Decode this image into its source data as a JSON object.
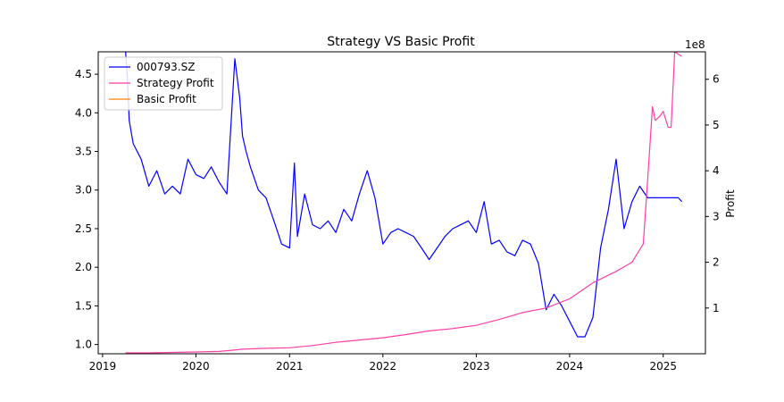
{
  "chart_data": {
    "type": "line",
    "title": "Strategy VS Basic Profit",
    "xlabel": "",
    "ylabel_left": "",
    "ylabel_right": "Profit",
    "right_axis_offset_label": "1e8",
    "x_ticks": [
      "2019",
      "2020",
      "2021",
      "2022",
      "2023",
      "2024",
      "2025"
    ],
    "xlim": [
      "2018-12-15",
      "2025-06-15"
    ],
    "y_left_ticks": [
      1.0,
      1.5,
      2.0,
      2.5,
      3.0,
      3.5,
      4.0,
      4.5
    ],
    "y_left_tick_labels": [
      "1.0",
      "1.5",
      "2.0",
      "2.5",
      "3.0",
      "3.5",
      "4.0",
      "4.5"
    ],
    "ylim_left": [
      0.88,
      4.79
    ],
    "y_right_ticks": [
      1,
      2,
      3,
      4,
      5,
      6
    ],
    "y_right_tick_labels": [
      "1",
      "2",
      "3",
      "4",
      "5",
      "6"
    ],
    "ylim_right": [
      0.0,
      6.6
    ],
    "grid": false,
    "legend_position": "top-left",
    "legend": [
      {
        "label": "000793.SZ",
        "color": "#0000ff"
      },
      {
        "label": "Strategy Profit",
        "color": "#ff3ea5"
      },
      {
        "label": "Basic Profit",
        "color": "#ff7f0e"
      }
    ],
    "series": [
      {
        "name": "000793.SZ",
        "axis": "left",
        "color": "#0000ff",
        "x": [
          "2019-04-01",
          "2019-04-08",
          "2019-04-15",
          "2019-05-01",
          "2019-06-01",
          "2019-07-01",
          "2019-08-01",
          "2019-09-01",
          "2019-10-01",
          "2019-11-01",
          "2019-12-01",
          "2020-01-01",
          "2020-02-01",
          "2020-03-01",
          "2020-04-01",
          "2020-05-01",
          "2020-06-01",
          "2020-06-20",
          "2020-07-01",
          "2020-07-15",
          "2020-08-01",
          "2020-09-01",
          "2020-10-01",
          "2020-11-01",
          "2020-12-01",
          "2021-01-01",
          "2021-01-20",
          "2021-02-01",
          "2021-03-01",
          "2021-04-01",
          "2021-05-01",
          "2021-06-01",
          "2021-07-01",
          "2021-08-01",
          "2021-09-01",
          "2021-10-01",
          "2021-11-01",
          "2021-12-01",
          "2022-01-01",
          "2022-02-01",
          "2022-03-01",
          "2022-04-01",
          "2022-05-01",
          "2022-06-01",
          "2022-07-01",
          "2022-08-01",
          "2022-09-01",
          "2022-10-01",
          "2022-11-01",
          "2022-12-01",
          "2023-01-01",
          "2023-02-01",
          "2023-03-01",
          "2023-04-01",
          "2023-05-01",
          "2023-06-01",
          "2023-07-01",
          "2023-08-01",
          "2023-09-01",
          "2023-10-01",
          "2023-11-01",
          "2023-12-01",
          "2024-01-01",
          "2024-02-01",
          "2024-03-01",
          "2024-04-01",
          "2024-05-01",
          "2024-06-01",
          "2024-07-01",
          "2024-08-01",
          "2024-09-01",
          "2024-10-01",
          "2024-11-01",
          "2024-12-01",
          "2025-01-01",
          "2025-02-01",
          "2025-03-01",
          "2025-03-15"
        ],
        "values": [
          4.8,
          4.45,
          3.9,
          3.6,
          3.4,
          3.05,
          3.25,
          2.95,
          3.05,
          2.95,
          3.4,
          3.2,
          3.15,
          3.3,
          3.1,
          2.95,
          4.7,
          4.2,
          3.7,
          3.5,
          3.3,
          3.0,
          2.9,
          2.6,
          2.3,
          2.25,
          3.35,
          2.4,
          2.95,
          2.55,
          2.5,
          2.6,
          2.45,
          2.75,
          2.6,
          2.95,
          3.25,
          2.9,
          2.3,
          2.45,
          2.5,
          2.45,
          2.4,
          2.25,
          2.1,
          2.25,
          2.4,
          2.5,
          2.55,
          2.6,
          2.45,
          2.85,
          2.3,
          2.35,
          2.2,
          2.15,
          2.35,
          2.3,
          2.05,
          1.45,
          1.65,
          1.5,
          1.3,
          1.1,
          1.1,
          1.35,
          2.25,
          2.75,
          3.4,
          2.5,
          2.85,
          3.05,
          2.9,
          2.9,
          2.9,
          2.9,
          2.9,
          2.85
        ]
      },
      {
        "name": "Strategy Profit",
        "axis": "right",
        "color": "#ff3ea5",
        "x": [
          "2019-04-01",
          "2019-07-01",
          "2019-10-01",
          "2020-01-01",
          "2020-04-01",
          "2020-07-01",
          "2020-10-01",
          "2021-01-01",
          "2021-04-01",
          "2021-07-01",
          "2021-10-01",
          "2022-01-01",
          "2022-04-01",
          "2022-07-01",
          "2022-10-01",
          "2023-01-01",
          "2023-04-01",
          "2023-07-01",
          "2023-10-01",
          "2024-01-01",
          "2024-04-01",
          "2024-07-01",
          "2024-09-01",
          "2024-10-15",
          "2024-11-01",
          "2024-11-20",
          "2024-12-01",
          "2024-12-20",
          "2025-01-01",
          "2025-01-20",
          "2025-02-01",
          "2025-02-15",
          "2025-03-01",
          "2025-03-15"
        ],
        "values": [
          0.02,
          0.02,
          0.03,
          0.04,
          0.05,
          0.1,
          0.12,
          0.13,
          0.18,
          0.25,
          0.3,
          0.35,
          0.42,
          0.5,
          0.55,
          0.62,
          0.75,
          0.9,
          1.0,
          1.2,
          1.55,
          1.8,
          2.0,
          2.4,
          3.8,
          5.4,
          5.1,
          5.2,
          5.3,
          4.95,
          4.95,
          6.6,
          6.55,
          6.5
        ]
      },
      {
        "name": "Basic Profit",
        "axis": "right",
        "color": "#ff7f0e",
        "x": [],
        "values": []
      }
    ]
  }
}
